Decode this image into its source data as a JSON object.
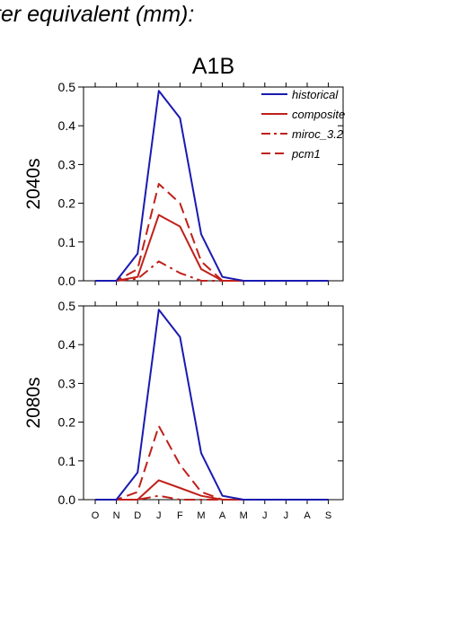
{
  "header": {
    "text": "ter equivalent (mm):"
  },
  "colors": {
    "historical": "#1a1ab0",
    "future": "#c0201a",
    "axis": "#000000"
  },
  "chart_data": [
    {
      "type": "line",
      "title": "A1B",
      "ylabel": "2040s",
      "xlabel": "",
      "categories": [
        "O",
        "N",
        "D",
        "J",
        "F",
        "M",
        "A",
        "M",
        "J",
        "J",
        "A",
        "S"
      ],
      "ylim": [
        0,
        0.5
      ],
      "yticks": [
        "0.0",
        "0.1",
        "0.2",
        "0.3",
        "0.4",
        "0.5"
      ],
      "legend_placement": "top-right",
      "series": [
        {
          "name": "historical",
          "style": "solid",
          "color": "#1a1ab0",
          "values": [
            0,
            0,
            0.07,
            0.49,
            0.42,
            0.12,
            0.01,
            0,
            0,
            0,
            0,
            0
          ]
        },
        {
          "name": "composite",
          "style": "solid",
          "color": "#c0201a",
          "values": [
            0,
            0,
            0.01,
            0.17,
            0.14,
            0.03,
            0,
            0,
            0,
            0,
            0,
            0
          ]
        },
        {
          "name": "miroc_3.2",
          "style": "dashdot",
          "color": "#c0201a",
          "values": [
            0,
            0,
            0.005,
            0.05,
            0.02,
            0,
            0,
            0,
            0,
            0,
            0,
            0
          ]
        },
        {
          "name": "pcm1",
          "style": "dash",
          "color": "#c0201a",
          "values": [
            0,
            0,
            0.03,
            0.25,
            0.2,
            0.05,
            0,
            0,
            0,
            0,
            0,
            0
          ]
        }
      ]
    },
    {
      "type": "line",
      "title": "",
      "ylabel": "2080s",
      "xlabel": "",
      "categories": [
        "O",
        "N",
        "D",
        "J",
        "F",
        "M",
        "A",
        "M",
        "J",
        "J",
        "A",
        "S"
      ],
      "ylim": [
        0,
        0.5
      ],
      "yticks": [
        "0.0",
        "0.1",
        "0.2",
        "0.3",
        "0.4",
        "0.5"
      ],
      "series": [
        {
          "name": "historical",
          "style": "solid",
          "color": "#1a1ab0",
          "values": [
            0,
            0,
            0.07,
            0.49,
            0.42,
            0.12,
            0.01,
            0,
            0,
            0,
            0,
            0
          ]
        },
        {
          "name": "composite",
          "style": "solid",
          "color": "#c0201a",
          "values": [
            0,
            0,
            0,
            0.05,
            0.03,
            0.01,
            0,
            0,
            0,
            0,
            0,
            0
          ]
        },
        {
          "name": "miroc_3.2",
          "style": "dashdot",
          "color": "#c0201a",
          "values": [
            0,
            0,
            0,
            0.01,
            0,
            0,
            0,
            0,
            0,
            0,
            0,
            0
          ]
        },
        {
          "name": "pcm1",
          "style": "dash",
          "color": "#c0201a",
          "values": [
            0,
            0,
            0.02,
            0.19,
            0.09,
            0.02,
            0,
            0,
            0,
            0,
            0,
            0
          ]
        }
      ]
    }
  ]
}
